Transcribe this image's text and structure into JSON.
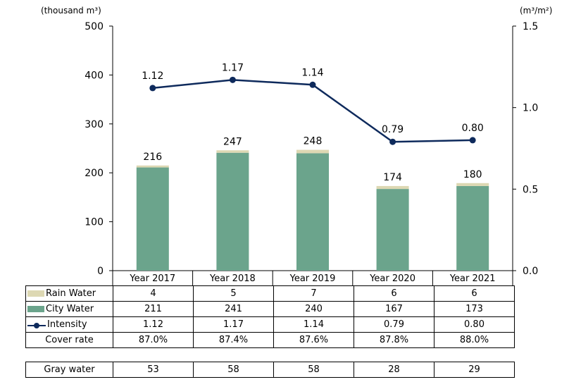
{
  "chart_data": {
    "type": "bar",
    "categories": [
      "Year 2017",
      "Year 2018",
      "Year 2019",
      "Year 2020",
      "Year 2021"
    ],
    "series": [
      {
        "name": "Rain Water",
        "kind": "stacked-bar",
        "values": [
          4,
          5,
          7,
          6,
          6
        ],
        "color": "#ddd8b3"
      },
      {
        "name": "City Water",
        "kind": "stacked-bar",
        "values": [
          211,
          241,
          240,
          167,
          173
        ],
        "color": "#6ba48c"
      },
      {
        "name": "Intensity",
        "kind": "line",
        "axis": "right",
        "values": [
          1.12,
          1.17,
          1.14,
          0.79,
          0.8
        ],
        "labels": [
          "1.12",
          "1.17",
          "1.14",
          "0.79",
          "0.80"
        ],
        "color": "#0e2a5c"
      }
    ],
    "totals": [
      216,
      247,
      248,
      174,
      180
    ],
    "ylabel_left": "(thousand m³)",
    "ylabel_right": "(m³/m²)",
    "ylim_left": [
      0,
      500
    ],
    "yticks_left": [
      "0",
      "100",
      "200",
      "300",
      "400",
      "500"
    ],
    "ylim_right": [
      0,
      1.5
    ],
    "yticks_right": [
      "0.0",
      "0.5",
      "1.0",
      "1.5"
    ],
    "grid": false
  },
  "table": {
    "rows": [
      {
        "label": "Rain Water",
        "swatch": "bar",
        "color": "#ddd8b3",
        "cells": [
          "4",
          "5",
          "7",
          "6",
          "6"
        ]
      },
      {
        "label": "City Water",
        "swatch": "bar",
        "color": "#6ba48c",
        "cells": [
          "211",
          "241",
          "240",
          "167",
          "173"
        ]
      },
      {
        "label": "Intensity",
        "swatch": "line",
        "color": "#0e2a5c",
        "cells": [
          "1.12",
          "1.17",
          "1.14",
          "0.79",
          "0.80"
        ]
      },
      {
        "label": "Cover rate",
        "swatch": "none",
        "cells": [
          "87.0%",
          "87.4%",
          "87.6%",
          "87.8%",
          "88.0%"
        ]
      }
    ],
    "gray_water": {
      "label": "Gray water",
      "cells": [
        "53",
        "58",
        "58",
        "28",
        "29"
      ]
    }
  }
}
